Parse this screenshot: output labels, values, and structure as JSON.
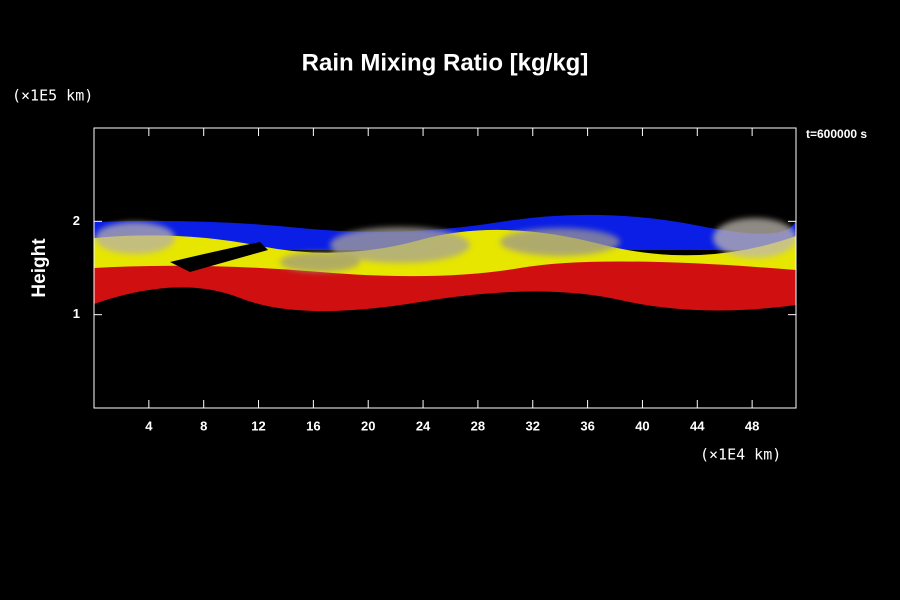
{
  "chart_data": {
    "type": "field",
    "title": "Rain Mixing Ratio [kg/kg]",
    "ylabel": "Height",
    "yunit": "(×1E5 km)",
    "xunit": "(×1E4 km)",
    "annotation": "t=600000 s",
    "xlim": [
      0,
      51.2
    ],
    "xticks": [
      4,
      8,
      12,
      16,
      20,
      24,
      28,
      32,
      36,
      40,
      44,
      48
    ],
    "ylim": [
      0,
      3
    ],
    "yticks": [
      1,
      2
    ]
  }
}
